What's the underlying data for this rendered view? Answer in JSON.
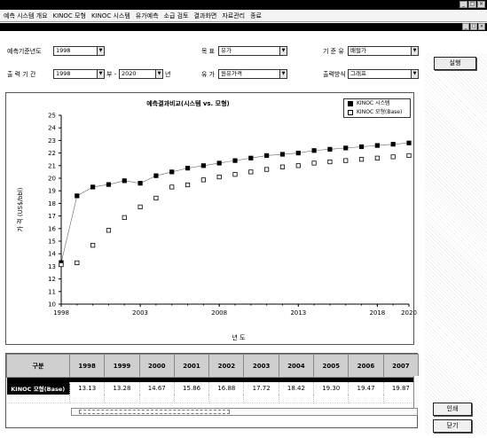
{
  "window": {
    "controls": [
      "_",
      "□",
      "×"
    ]
  },
  "menu": {
    "items": [
      "예측 시스템 개요",
      "KINOC 모형",
      "KINOC 시스템",
      "유가예측",
      "소급 검토",
      "결과화면",
      "자료관리",
      "종료"
    ]
  },
  "form": {
    "base_year_label": "예측기준년도",
    "base_year_value": "1998",
    "target_label": "목 표",
    "target_value": "유가",
    "rate_label": "기 준 유",
    "rate_value": "배럴가",
    "period_label": "출 력 기 간",
    "period_from": "1998",
    "period_to": "2020",
    "period_sep": "부 -",
    "period_unit": "년",
    "model_label": "유 가",
    "model_value": "원유가격",
    "method_label": "출력방식",
    "method_value": "그래프",
    "execute_label": "실행"
  },
  "chart_data": {
    "type": "scatter",
    "title": "예측결과비교(시스템 vs. 모형)",
    "xlabel": "년 도",
    "ylabel": "가 격 (US$/bbl)",
    "xlim": [
      1998,
      2020
    ],
    "ylim": [
      10,
      25
    ],
    "xticks": [
      1998,
      2003,
      2008,
      2013,
      2018,
      2020
    ],
    "yticks": [
      10,
      11,
      12,
      13,
      14,
      15,
      16,
      17,
      18,
      19,
      20,
      21,
      22,
      23,
      24,
      25
    ],
    "legend_placement": "top-right",
    "series": [
      {
        "name": "KINOC 시스템",
        "marker": "filled-square",
        "x": [
          1998,
          1999,
          2000,
          2001,
          2002,
          2003,
          2004,
          2005,
          2006,
          2007,
          2008,
          2009,
          2010,
          2011,
          2012,
          2013,
          2014,
          2015,
          2016,
          2017,
          2018,
          2019,
          2020
        ],
        "values": [
          13.3,
          18.6,
          19.3,
          19.5,
          19.8,
          19.6,
          20.2,
          20.5,
          20.8,
          21.0,
          21.2,
          21.4,
          21.6,
          21.8,
          21.9,
          22.0,
          22.2,
          22.3,
          22.4,
          22.5,
          22.6,
          22.7,
          22.8
        ]
      },
      {
        "name": "KINOC 모형(Base)",
        "marker": "open-square",
        "x": [
          1998,
          1999,
          2000,
          2001,
          2002,
          2003,
          2004,
          2005,
          2006,
          2007,
          2008,
          2009,
          2010,
          2011,
          2012,
          2013,
          2014,
          2015,
          2016,
          2017,
          2018,
          2019,
          2020
        ],
        "values": [
          13.13,
          13.28,
          14.67,
          15.86,
          16.88,
          17.72,
          18.42,
          19.3,
          19.47,
          19.87,
          20.1,
          20.3,
          20.5,
          20.7,
          20.9,
          21.0,
          21.2,
          21.3,
          21.4,
          21.5,
          21.6,
          21.7,
          21.8
        ]
      }
    ]
  },
  "grid": {
    "corner_label": "구분",
    "years": [
      "1998",
      "1999",
      "2000",
      "2001",
      "2002",
      "2003",
      "2004",
      "2005",
      "2006",
      "2007"
    ],
    "row_label": "KINOC 모형(Base)",
    "row_values": [
      "13.13",
      "13.28",
      "14.67",
      "15.86",
      "16.88",
      "17.72",
      "18.42",
      "19.30",
      "19.47",
      "19.87"
    ]
  },
  "buttons": {
    "print_label": "인쇄",
    "close_label": "닫기"
  }
}
